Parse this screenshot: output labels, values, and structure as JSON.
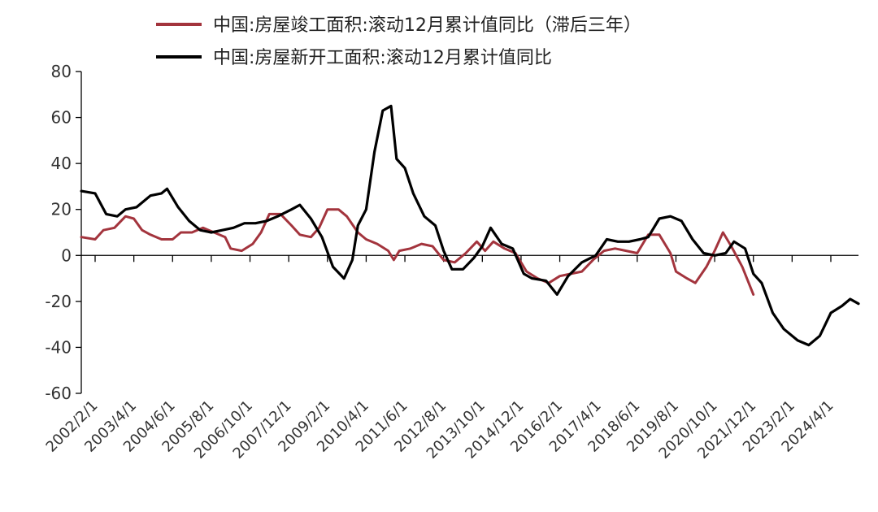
{
  "chart_data": {
    "type": "line",
    "title": "",
    "xlabel": "",
    "ylabel": "",
    "ylim": [
      -60,
      80
    ],
    "yticks": [
      80,
      60,
      40,
      20,
      0,
      -20,
      -40,
      -60
    ],
    "grid": false,
    "legend_position": "top",
    "x_tick_labels": [
      "2002/2/1",
      "2003/4/1",
      "2004/6/1",
      "2005/8/1",
      "2006/10/1",
      "2007/12/1",
      "2009/2/1",
      "2010/4/1",
      "2011/6/1",
      "2012/8/1",
      "2013/10/1",
      "2014/12/1",
      "2016/2/1",
      "2017/4/1",
      "2018/6/1",
      "2019/8/1",
      "2020/10/1",
      "2021/12/1",
      "2023/2/1",
      "2024/4/1"
    ],
    "x_range": [
      "2001/9/1",
      "2025/2/1"
    ],
    "series": [
      {
        "name": "中国:房屋竣工面积:滚动12月累计值同比（滞后三年）",
        "color": "#a3343d",
        "points": [
          [
            "2001/9/1",
            8
          ],
          [
            "2002/2/1",
            7
          ],
          [
            "2002/5/1",
            11
          ],
          [
            "2002/9/1",
            12
          ],
          [
            "2003/1/1",
            17
          ],
          [
            "2003/4/1",
            16
          ],
          [
            "2003/7/1",
            11
          ],
          [
            "2003/10/1",
            9
          ],
          [
            "2004/2/1",
            7
          ],
          [
            "2004/6/1",
            7
          ],
          [
            "2004/9/1",
            10
          ],
          [
            "2005/1/1",
            10
          ],
          [
            "2005/5/1",
            12
          ],
          [
            "2005/9/1",
            10
          ],
          [
            "2006/1/1",
            8
          ],
          [
            "2006/3/1",
            3
          ],
          [
            "2006/7/1",
            2
          ],
          [
            "2006/11/1",
            5
          ],
          [
            "2007/2/1",
            10
          ],
          [
            "2007/5/1",
            18
          ],
          [
            "2007/9/1",
            18
          ],
          [
            "2008/1/1",
            13
          ],
          [
            "2008/4/1",
            9
          ],
          [
            "2008/8/1",
            8
          ],
          [
            "2008/11/1",
            12
          ],
          [
            "2009/2/1",
            20
          ],
          [
            "2009/6/1",
            20
          ],
          [
            "2009/9/1",
            17
          ],
          [
            "2010/1/1",
            10
          ],
          [
            "2010/4/1",
            7
          ],
          [
            "2010/8/1",
            5
          ],
          [
            "2010/12/1",
            2
          ],
          [
            "2011/2/1",
            -2
          ],
          [
            "2011/4/1",
            2
          ],
          [
            "2011/8/1",
            3
          ],
          [
            "2011/12/1",
            5
          ],
          [
            "2012/4/1",
            4
          ],
          [
            "2012/8/1",
            -2
          ],
          [
            "2012/12/1",
            -3
          ],
          [
            "2013/4/1",
            1
          ],
          [
            "2013/8/1",
            6
          ],
          [
            "2013/11/1",
            2
          ],
          [
            "2014/2/1",
            6
          ],
          [
            "2014/6/1",
            3
          ],
          [
            "2014/10/1",
            1
          ],
          [
            "2015/2/1",
            -7
          ],
          [
            "2015/6/1",
            -10
          ],
          [
            "2015/10/1",
            -12
          ],
          [
            "2016/2/1",
            -9
          ],
          [
            "2016/6/1",
            -8
          ],
          [
            "2016/10/1",
            -7
          ],
          [
            "2017/2/1",
            -2
          ],
          [
            "2017/6/1",
            2
          ],
          [
            "2017/10/1",
            3
          ],
          [
            "2018/2/1",
            2
          ],
          [
            "2018/6/1",
            1
          ],
          [
            "2018/10/1",
            9
          ],
          [
            "2019/2/1",
            9
          ],
          [
            "2019/6/1",
            1
          ],
          [
            "2019/8/1",
            -7
          ],
          [
            "2019/12/1",
            -10
          ],
          [
            "2020/3/1",
            -12
          ],
          [
            "2020/7/1",
            -5
          ],
          [
            "2020/10/1",
            2
          ],
          [
            "2021/1/1",
            10
          ],
          [
            "2021/4/1",
            4
          ],
          [
            "2021/8/1",
            -5
          ],
          [
            "2021/12/1",
            -17
          ]
        ]
      },
      {
        "name": "中国:房屋新开工面积:滚动12月累计值同比",
        "color": "#000000",
        "points": [
          [
            "2001/9/1",
            28
          ],
          [
            "2002/2/1",
            27
          ],
          [
            "2002/6/1",
            18
          ],
          [
            "2002/10/1",
            17
          ],
          [
            "2003/1/1",
            20
          ],
          [
            "2003/5/1",
            21
          ],
          [
            "2003/10/1",
            26
          ],
          [
            "2004/2/1",
            27
          ],
          [
            "2004/4/1",
            29
          ],
          [
            "2004/8/1",
            21
          ],
          [
            "2004/12/1",
            15
          ],
          [
            "2005/4/1",
            11
          ],
          [
            "2005/8/1",
            10
          ],
          [
            "2005/12/1",
            11
          ],
          [
            "2006/4/1",
            12
          ],
          [
            "2006/8/1",
            14
          ],
          [
            "2006/12/1",
            14
          ],
          [
            "2007/4/1",
            15
          ],
          [
            "2007/8/1",
            17
          ],
          [
            "2008/1/1",
            20
          ],
          [
            "2008/4/1",
            22
          ],
          [
            "2008/8/1",
            16
          ],
          [
            "2008/12/1",
            8
          ],
          [
            "2009/4/1",
            -5
          ],
          [
            "2009/8/1",
            -10
          ],
          [
            "2009/11/1",
            -2
          ],
          [
            "2010/1/1",
            13
          ],
          [
            "2010/4/1",
            20
          ],
          [
            "2010/7/1",
            45
          ],
          [
            "2010/10/1",
            63
          ],
          [
            "2011/1/1",
            65
          ],
          [
            "2011/3/1",
            42
          ],
          [
            "2011/6/1",
            38
          ],
          [
            "2011/9/1",
            27
          ],
          [
            "2012/1/1",
            17
          ],
          [
            "2012/5/1",
            13
          ],
          [
            "2012/8/1",
            2
          ],
          [
            "2012/11/1",
            -6
          ],
          [
            "2013/3/1",
            -6
          ],
          [
            "2013/7/1",
            -1
          ],
          [
            "2013/10/1",
            4
          ],
          [
            "2014/1/1",
            12
          ],
          [
            "2014/5/1",
            5
          ],
          [
            "2014/9/1",
            3
          ],
          [
            "2015/1/1",
            -8
          ],
          [
            "2015/4/1",
            -10
          ],
          [
            "2015/9/1",
            -11
          ],
          [
            "2016/1/1",
            -17
          ],
          [
            "2016/5/1",
            -9
          ],
          [
            "2016/10/1",
            -3
          ],
          [
            "2017/3/1",
            0
          ],
          [
            "2017/7/1",
            7
          ],
          [
            "2017/11/1",
            6
          ],
          [
            "2018/3/1",
            6
          ],
          [
            "2018/7/1",
            7
          ],
          [
            "2018/10/1",
            8
          ],
          [
            "2019/2/1",
            16
          ],
          [
            "2019/6/1",
            17
          ],
          [
            "2019/10/1",
            15
          ],
          [
            "2020/2/1",
            7
          ],
          [
            "2020/6/1",
            1
          ],
          [
            "2020/10/1",
            0
          ],
          [
            "2021/2/1",
            1
          ],
          [
            "2021/5/1",
            6
          ],
          [
            "2021/9/1",
            3
          ],
          [
            "2021/12/1",
            -8
          ],
          [
            "2022/3/1",
            -12
          ],
          [
            "2022/7/1",
            -25
          ],
          [
            "2022/11/1",
            -32
          ],
          [
            "2023/4/1",
            -37
          ],
          [
            "2023/8/1",
            -39
          ],
          [
            "2023/12/1",
            -35
          ],
          [
            "2024/4/1",
            -25
          ],
          [
            "2024/8/1",
            -22
          ],
          [
            "2024/11/1",
            -19
          ],
          [
            "2025/2/1",
            -21
          ]
        ]
      }
    ]
  }
}
